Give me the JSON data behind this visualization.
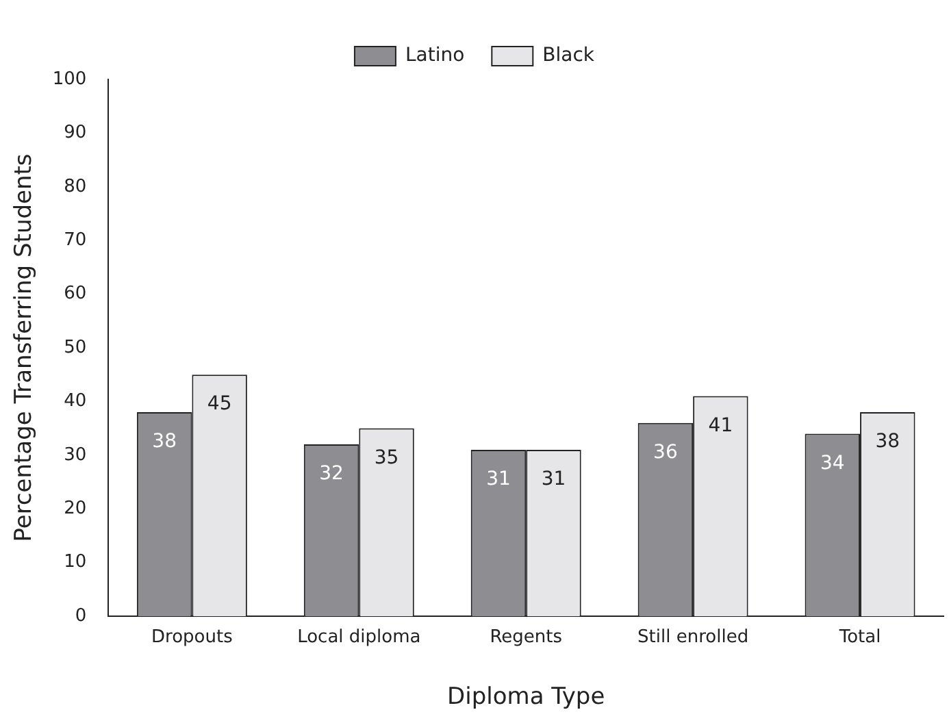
{
  "chart_data": {
    "type": "bar",
    "xlabel": "Diploma Type",
    "ylabel": "Percentage Transferring Students",
    "categories": [
      "Dropouts",
      "Local diploma",
      "Regents",
      "Still enrolled",
      "Total"
    ],
    "series": [
      {
        "name": "Latino",
        "color": "#8e8e92",
        "values": [
          38,
          32,
          31,
          36,
          34
        ]
      },
      {
        "name": "Black",
        "color": "#e6e6e8",
        "values": [
          45,
          35,
          31,
          41,
          38
        ]
      }
    ],
    "ylim": [
      0,
      100
    ],
    "yticks": [
      0,
      10,
      20,
      30,
      40,
      50,
      60,
      70,
      80,
      90,
      100
    ],
    "grid": false,
    "legend": "top",
    "data_labels": true
  }
}
